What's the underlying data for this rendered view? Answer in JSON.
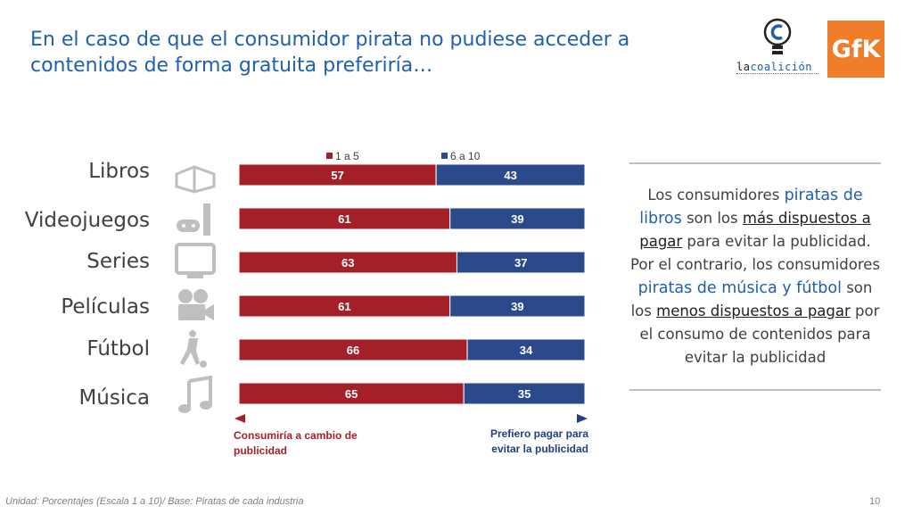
{
  "slide": {
    "title_line1": "En el caso de que el consumidor pirata no pudiese acceder a",
    "title_line2": "contenidos de forma gratuita preferiría…",
    "footnote": "Unidad: Porcentajes (Escala 1 a 10)/ Base: Piratas de cada industria",
    "page_number": "10"
  },
  "logos": {
    "coalicion_prefix": "la",
    "coalicion_name": "coalición",
    "gfk": "GfK"
  },
  "icons": [
    "book-icon",
    "gamepad-icon",
    "tv-icon",
    "film-camera-icon",
    "football-player-icon",
    "music-note-icon"
  ],
  "chart_data": {
    "type": "bar",
    "orientation": "horizontal",
    "stacked": true,
    "categories": [
      "Libros",
      "Videojuegos",
      "Series",
      "Películas",
      "Fútbol",
      "Música"
    ],
    "series": [
      {
        "name": "1 a 5",
        "values": [
          57,
          61,
          63,
          61,
          66,
          65
        ],
        "color": "#a51f29"
      },
      {
        "name": "6 a 10",
        "values": [
          43,
          39,
          37,
          39,
          34,
          35
        ],
        "color": "#2b4a8b"
      }
    ],
    "xlim": [
      0,
      100
    ],
    "legend": "top",
    "axis_left_label": "Consumiría a cambio de publicidad",
    "axis_right_label": "Prefiero pagar para evitar la publicidad",
    "axis_left_line1": "Consumiría a cambio de",
    "axis_left_line2": "publicidad",
    "axis_right_line1": "Prefiero pagar para",
    "axis_right_line2": "evitar la publicidad",
    "axis_left_color": "#a51f29",
    "axis_right_color": "#1f3f86"
  },
  "panel": {
    "t1": "Los consumidores ",
    "h1": "piratas de libros",
    "t2": " son los ",
    "u1": "más dispuestos a pagar",
    "t3": " para evitar la publicidad. Por el contrario, los consumidores ",
    "h2": "piratas de música y fútbol",
    "t4": " son los ",
    "u2": "menos dispuestos a pagar",
    "t5": " por el consumo de contenidos para evitar la publicidad"
  }
}
